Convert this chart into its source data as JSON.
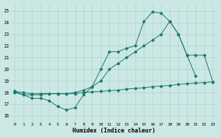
{
  "bg_color": "#cce8e5",
  "line_color": "#1a7a6e",
  "grid_color": "#aed0cc",
  "xlabel": "Humidex (Indice chaleur)",
  "xlim": [
    -0.5,
    23.5
  ],
  "ylim": [
    15.5,
    25.6
  ],
  "yticks": [
    16,
    17,
    18,
    19,
    20,
    21,
    22,
    23,
    24,
    25
  ],
  "xticks": [
    0,
    1,
    2,
    3,
    4,
    5,
    6,
    7,
    8,
    9,
    10,
    11,
    12,
    13,
    14,
    15,
    16,
    17,
    18,
    19,
    20,
    21,
    22,
    23
  ],
  "series": [
    {
      "x": [
        0,
        1,
        2,
        3,
        4,
        5,
        6,
        7,
        8,
        9,
        10,
        11,
        12,
        13,
        14,
        15,
        16,
        17,
        18,
        19,
        20,
        21
      ],
      "y": [
        18.1,
        17.8,
        17.5,
        17.5,
        17.3,
        16.8,
        16.5,
        16.7,
        17.8,
        18.5,
        20.0,
        21.5,
        21.5,
        21.8,
        22.0,
        24.1,
        24.9,
        24.8,
        24.1,
        23.0,
        21.2,
        19.4
      ]
    },
    {
      "x": [
        0,
        1,
        2,
        3,
        4,
        5,
        6,
        7,
        8,
        9,
        10,
        11,
        12,
        13,
        14,
        15,
        16,
        17,
        18,
        19,
        20,
        21,
        22,
        23
      ],
      "y": [
        18.0,
        17.8,
        17.8,
        17.8,
        17.9,
        17.9,
        17.9,
        18.0,
        18.2,
        18.5,
        19.0,
        20.0,
        20.5,
        21.0,
        21.5,
        22.0,
        22.5,
        23.0,
        24.1,
        23.0,
        21.2,
        21.2,
        21.2,
        18.9
      ]
    },
    {
      "x": [
        0,
        1,
        2,
        3,
        4,
        5,
        6,
        7,
        8,
        9,
        10,
        11,
        12,
        13,
        14,
        15,
        16,
        17,
        18,
        19,
        20,
        21,
        22,
        23
      ],
      "y": [
        18.1,
        18.0,
        17.9,
        17.9,
        17.9,
        17.9,
        17.9,
        17.9,
        18.0,
        18.05,
        18.1,
        18.15,
        18.2,
        18.3,
        18.35,
        18.4,
        18.5,
        18.55,
        18.6,
        18.7,
        18.75,
        18.8,
        18.85,
        18.9
      ]
    }
  ]
}
